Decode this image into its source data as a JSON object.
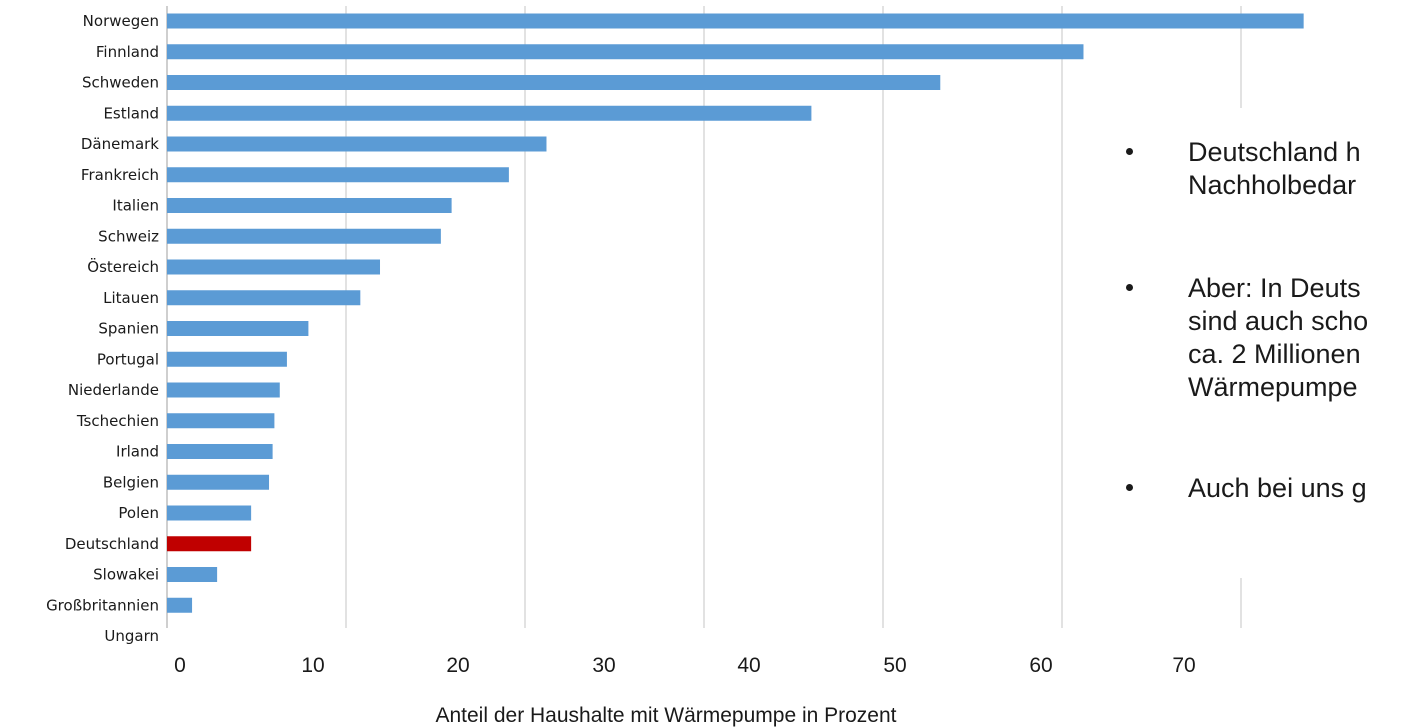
{
  "chart_data": {
    "type": "bar",
    "orientation": "horizontal",
    "categories": [
      "Norwegen",
      "Finnland",
      "Schweden",
      "Estland",
      "Dänemark",
      "Frankreich",
      "Italien",
      "Schweiz",
      "Östereich",
      "Litauen",
      "Spanien",
      "Portugal",
      "Niederlande",
      "Tschechien",
      "Irland",
      "Belgien",
      "Polen",
      "Deutschland",
      "Slowakei",
      "Großbritannien",
      "Ungarn"
    ],
    "values": [
      63.5,
      51.2,
      43.2,
      36.0,
      21.2,
      19.1,
      15.9,
      15.3,
      11.9,
      10.8,
      7.9,
      6.7,
      6.3,
      6.0,
      5.9,
      5.7,
      4.7,
      4.7,
      2.8,
      1.4,
      0
    ],
    "highlight": "Deutschland",
    "colors": {
      "default": "#5B9BD5",
      "highlight": "#C00000"
    },
    "x_tick_labels": [
      "0",
      "10",
      "20",
      "30",
      "40",
      "50",
      "60",
      "70"
    ],
    "xlabel": "Anteil der Haushalte mit Wärmepumpe in Prozent",
    "xlim": [
      0,
      70
    ],
    "grid": "vertical"
  },
  "notes": [
    {
      "text": "Deutschland h\nNachholbedar"
    },
    {
      "text": "Aber: In Deuts\nsind auch scho\nca. 2 Millionen\nWärmepumpe"
    },
    {
      "text": "Auch bei uns g"
    }
  ]
}
